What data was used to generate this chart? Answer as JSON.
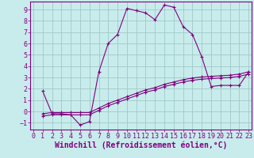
{
  "xlabel": "Windchill (Refroidissement éolien,°C)",
  "background_color": "#c8ecec",
  "grid_color": "#a0c8c8",
  "line_color": "#800080",
  "x_ticks": [
    0,
    1,
    2,
    3,
    4,
    5,
    6,
    7,
    8,
    9,
    10,
    11,
    12,
    13,
    14,
    15,
    16,
    17,
    18,
    19,
    20,
    21,
    22,
    23
  ],
  "y_ticks": [
    -1,
    0,
    1,
    2,
    3,
    4,
    5,
    6,
    7,
    8,
    9
  ],
  "xlim": [
    -0.3,
    23.3
  ],
  "ylim": [
    -1.6,
    9.7
  ],
  "line1_x": [
    1,
    2,
    3,
    4,
    5,
    6,
    7,
    8,
    9,
    10,
    11,
    12,
    13,
    14,
    15,
    16,
    17,
    18,
    19,
    20,
    21,
    22,
    23
  ],
  "line1_y": [
    1.8,
    -0.2,
    -0.2,
    -0.3,
    -1.2,
    -0.9,
    3.5,
    6.0,
    6.8,
    9.1,
    8.9,
    8.7,
    8.1,
    9.4,
    9.2,
    7.5,
    6.8,
    4.8,
    2.2,
    2.3,
    2.3,
    2.3,
    3.5
  ],
  "line2_x": [
    1,
    2,
    3,
    4,
    5,
    6,
    7,
    8,
    9,
    10,
    11,
    12,
    13,
    14,
    15,
    16,
    17,
    18,
    19,
    20,
    21,
    22,
    23
  ],
  "line2_y": [
    -0.2,
    -0.1,
    -0.1,
    -0.1,
    -0.1,
    -0.1,
    0.3,
    0.7,
    1.0,
    1.3,
    1.6,
    1.9,
    2.1,
    2.4,
    2.6,
    2.8,
    2.95,
    3.05,
    3.1,
    3.15,
    3.2,
    3.3,
    3.5
  ],
  "line3_x": [
    1,
    2,
    3,
    4,
    5,
    6,
    7,
    8,
    9,
    10,
    11,
    12,
    13,
    14,
    15,
    16,
    17,
    18,
    19,
    20,
    21,
    22,
    23
  ],
  "line3_y": [
    -0.4,
    -0.3,
    -0.3,
    -0.3,
    -0.3,
    -0.3,
    0.1,
    0.5,
    0.8,
    1.1,
    1.4,
    1.7,
    1.9,
    2.2,
    2.4,
    2.6,
    2.75,
    2.85,
    2.9,
    2.95,
    3.0,
    3.1,
    3.3
  ],
  "tick_fontsize": 6.0,
  "xlabel_fontsize": 7.0,
  "marker": "+",
  "markersize": 3.5,
  "linewidth": 0.8
}
